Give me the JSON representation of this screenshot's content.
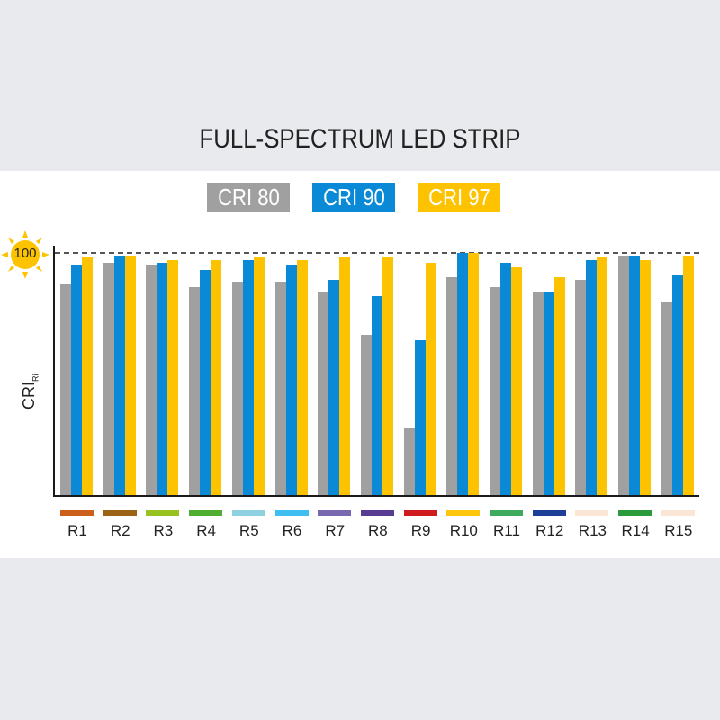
{
  "title": "FULL-SPECTRUM LED STRIP",
  "legend": [
    {
      "label": "CRI 80",
      "color": "#a0a0a0"
    },
    {
      "label": "CRI 90",
      "color": "#0a8ad6"
    },
    {
      "label": "CRI 97",
      "color": "#fdc300"
    }
  ],
  "y_axis": {
    "label": "CRI",
    "label_sub": "Ri",
    "ref_label": "100",
    "ref_icon": "sun-icon"
  },
  "chart_data": {
    "type": "bar",
    "title": "FULL-SPECTRUM LED STRIP",
    "xlabel": "",
    "ylabel": "CRI Ri",
    "ylim": [
      0,
      100
    ],
    "grid": false,
    "reference_line": {
      "y": 100,
      "style": "dashed",
      "label": "100"
    },
    "legend_position": "top",
    "categories": [
      "R1",
      "R2",
      "R3",
      "R4",
      "R5",
      "R6",
      "R7",
      "R8",
      "R9",
      "R10",
      "R11",
      "R12",
      "R13",
      "R14",
      "R15"
    ],
    "category_colors": [
      "#cc5f1c",
      "#9a6316",
      "#98c21f",
      "#4fae32",
      "#8ecfe0",
      "#3ebff0",
      "#7868b0",
      "#573c92",
      "#cf1a1e",
      "#fdc50d",
      "#3daa5e",
      "#1e3f96",
      "#fbe5d4",
      "#2b9a3b",
      "#fbe5d4"
    ],
    "series": [
      {
        "name": "CRI 80",
        "color": "#a0a0a0",
        "values": [
          87,
          96,
          95,
          86,
          88,
          88,
          84,
          66,
          28,
          90,
          86,
          84,
          89,
          99,
          80
        ]
      },
      {
        "name": "CRI 90",
        "color": "#0a8ad6",
        "values": [
          95,
          99,
          96,
          93,
          97,
          95,
          89,
          82,
          64,
          100,
          96,
          84,
          97,
          99,
          91
        ]
      },
      {
        "name": "CRI 97",
        "color": "#fdc300",
        "values": [
          98,
          99,
          97,
          97,
          98,
          97,
          98,
          98,
          96,
          100,
          94,
          90,
          98,
          97,
          99
        ]
      }
    ]
  }
}
